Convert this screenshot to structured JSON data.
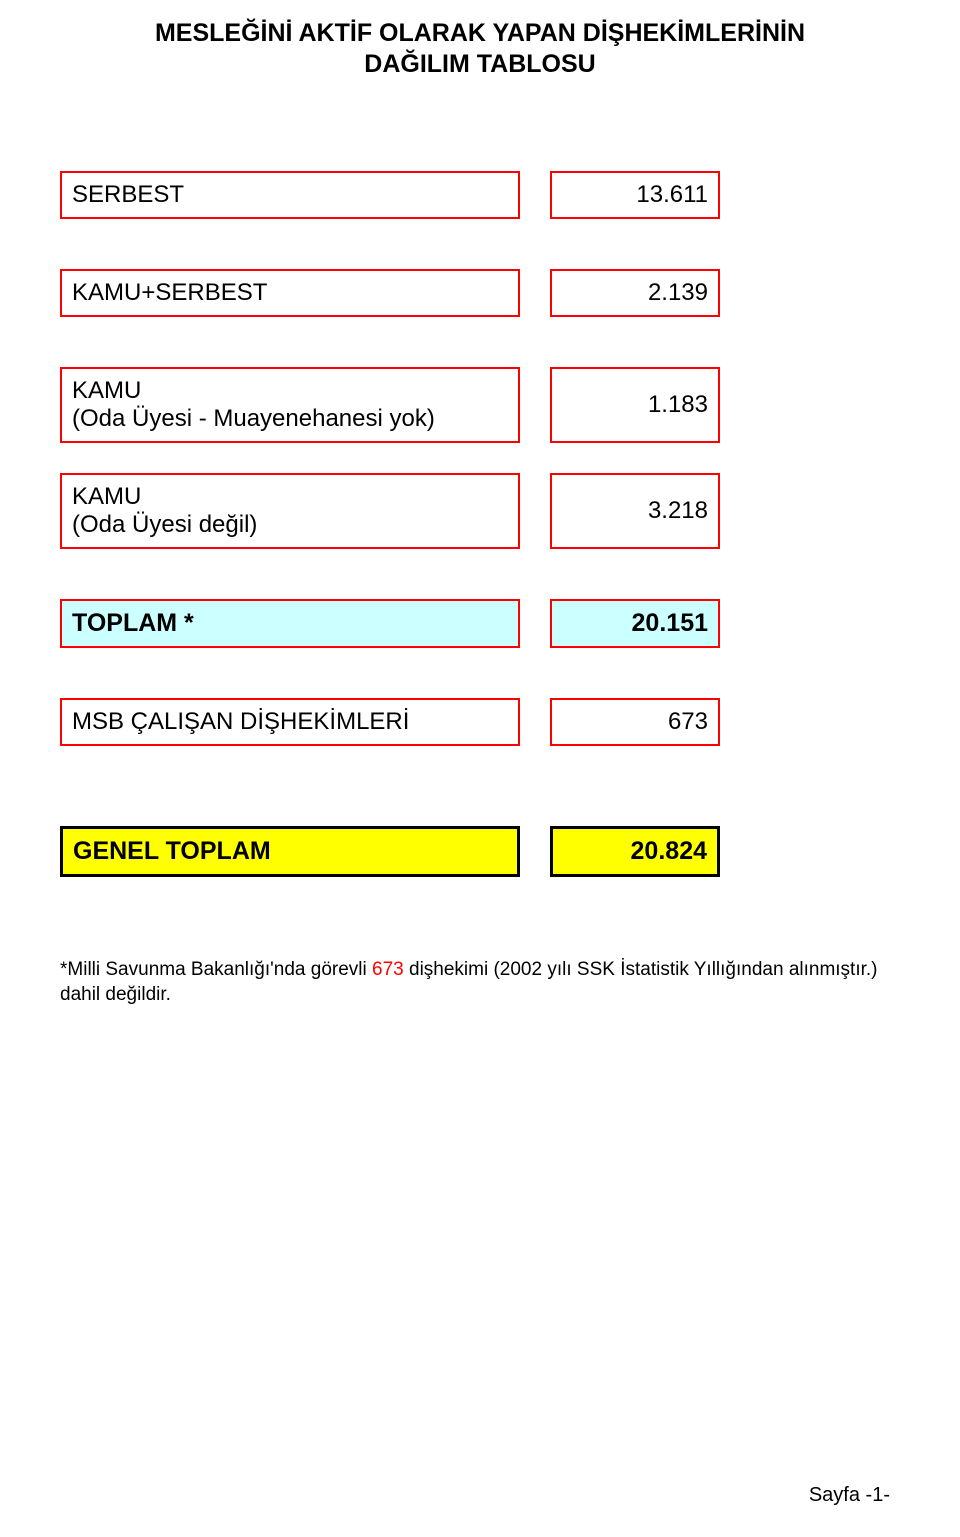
{
  "title_line1": "MESLEĞİNİ AKTİF OLARAK YAPAN DİŞHEKİMLERİNİN",
  "title_line2": "DAĞILIM TABLOSU",
  "rows": {
    "serbest": {
      "label": "SERBEST",
      "value": "13.611"
    },
    "kamu_serbest": {
      "label": "KAMU+SERBEST",
      "value": "2.139"
    },
    "kamu_muayene": {
      "label1": "KAMU",
      "label2": "(Oda Üyesi - Muayenehanesi yok)",
      "value": "1.183"
    },
    "kamu_degil": {
      "label1": "KAMU",
      "label2": "(Oda Üyesi değil)",
      "value": "3.218"
    },
    "toplam": {
      "label": "TOPLAM *",
      "value": "20.151"
    },
    "msb": {
      "label": "MSB ÇALIŞAN DİŞHEKİMLERİ",
      "value": "673"
    },
    "genel": {
      "label": "GENEL TOPLAM",
      "value": "20.824"
    }
  },
  "footnote": {
    "prefix": "*Milli Savunma Bakanlığı'nda görevli ",
    "number": "673",
    "suffix": " dişhekimi (2002 yılı SSK İstatistik Yıllığından alınmıştır.) dahil değildir."
  },
  "page_number": "Sayfa  -1-",
  "colors": {
    "border_red": "#ff0000",
    "border_black": "#000000",
    "bg_white": "#ffffff",
    "bg_cyan": "#ccffff",
    "bg_yellow": "#ffff00",
    "text": "#000000",
    "footnote_num": "#ff0000"
  }
}
